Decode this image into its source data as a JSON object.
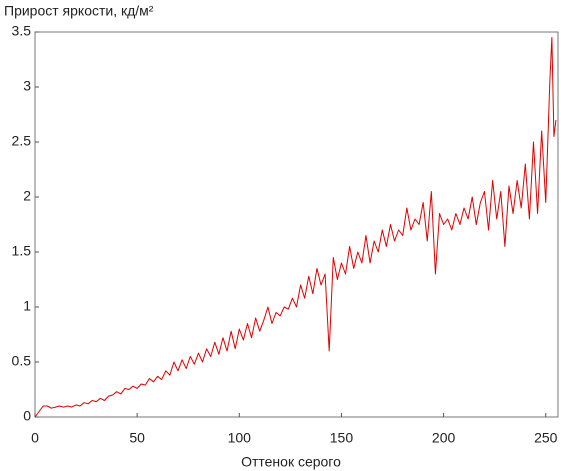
{
  "chart_data": {
    "type": "line",
    "title": "Прирост яркости, кд/м²",
    "x_label": "Оттенок серого",
    "x": [
      0,
      2,
      4,
      6,
      8,
      10,
      12,
      14,
      16,
      18,
      20,
      22,
      24,
      26,
      28,
      30,
      32,
      34,
      36,
      38,
      40,
      42,
      44,
      46,
      48,
      50,
      52,
      54,
      56,
      58,
      60,
      62,
      64,
      66,
      68,
      70,
      72,
      74,
      76,
      78,
      80,
      82,
      84,
      86,
      88,
      90,
      92,
      94,
      96,
      98,
      100,
      102,
      104,
      106,
      108,
      110,
      112,
      114,
      116,
      118,
      120,
      122,
      124,
      126,
      128,
      130,
      132,
      134,
      136,
      138,
      140,
      142,
      144,
      146,
      148,
      150,
      152,
      154,
      156,
      158,
      160,
      162,
      164,
      166,
      168,
      170,
      172,
      174,
      176,
      178,
      180,
      182,
      184,
      186,
      188,
      190,
      192,
      194,
      196,
      198,
      200,
      202,
      204,
      206,
      208,
      210,
      212,
      214,
      216,
      218,
      220,
      222,
      224,
      226,
      228,
      230,
      232,
      234,
      236,
      238,
      240,
      242,
      244,
      246,
      248,
      250,
      252,
      253,
      254,
      255
    ],
    "series": [
      {
        "name": "Прирост",
        "color": "#e00000",
        "values": [
          0.0,
          0.05,
          0.1,
          0.1,
          0.08,
          0.09,
          0.1,
          0.09,
          0.1,
          0.09,
          0.11,
          0.1,
          0.13,
          0.12,
          0.15,
          0.14,
          0.17,
          0.15,
          0.19,
          0.2,
          0.23,
          0.21,
          0.26,
          0.25,
          0.28,
          0.26,
          0.3,
          0.29,
          0.35,
          0.32,
          0.37,
          0.34,
          0.42,
          0.38,
          0.5,
          0.42,
          0.52,
          0.44,
          0.55,
          0.48,
          0.58,
          0.5,
          0.62,
          0.55,
          0.68,
          0.57,
          0.72,
          0.6,
          0.78,
          0.62,
          0.8,
          0.7,
          0.85,
          0.72,
          0.9,
          0.78,
          0.88,
          1.0,
          0.85,
          0.95,
          0.92,
          1.0,
          0.98,
          1.08,
          1.0,
          1.2,
          1.08,
          1.28,
          1.12,
          1.35,
          1.2,
          1.3,
          0.6,
          1.45,
          1.25,
          1.4,
          1.3,
          1.55,
          1.35,
          1.5,
          1.4,
          1.65,
          1.4,
          1.6,
          1.5,
          1.7,
          1.55,
          1.75,
          1.6,
          1.7,
          1.65,
          1.9,
          1.7,
          1.8,
          1.75,
          1.95,
          1.6,
          2.05,
          1.3,
          1.85,
          1.75,
          1.8,
          1.7,
          1.85,
          1.75,
          1.9,
          1.8,
          2.0,
          1.75,
          1.95,
          2.05,
          1.7,
          2.15,
          1.8,
          2.05,
          1.55,
          2.1,
          1.85,
          2.15,
          1.9,
          2.3,
          1.8,
          2.5,
          1.85,
          2.6,
          1.95,
          3.05,
          3.45,
          2.55,
          2.7
        ]
      }
    ],
    "xlim": [
      0,
      256
    ],
    "ylim": [
      0,
      3.5
    ],
    "xticks": [
      0,
      50,
      100,
      150,
      200,
      250
    ],
    "yticks": [
      0,
      0.5,
      1,
      1.5,
      2,
      2.5,
      3,
      3.5
    ],
    "grid": false
  }
}
